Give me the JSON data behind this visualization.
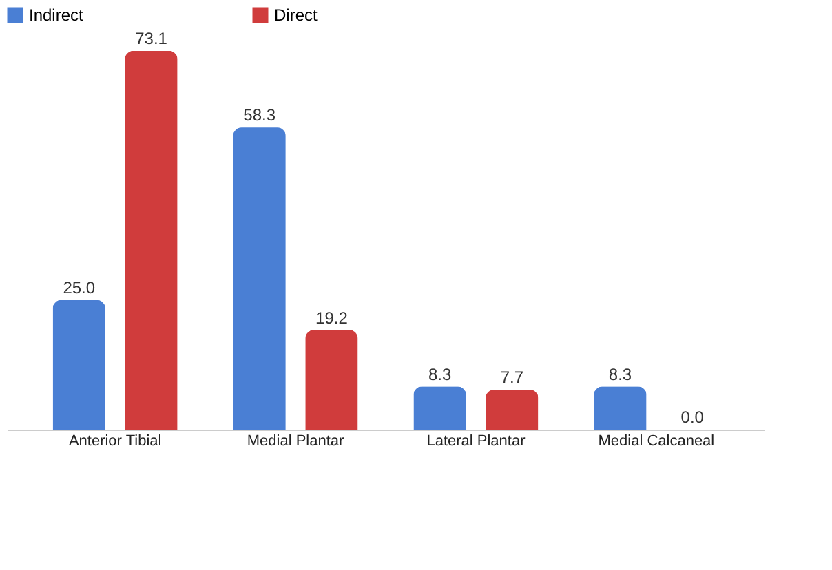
{
  "chart_data": {
    "type": "bar",
    "categories": [
      "Anterior Tibial",
      "Medial Plantar",
      "Lateral Plantar",
      "Medial Calcaneal"
    ],
    "series": [
      {
        "name": "Indirect",
        "color": "#4a7fd4",
        "values": [
          25.0,
          58.3,
          8.3,
          8.3
        ],
        "value_labels": [
          "25.0",
          "58.3",
          "8.3",
          "8.3"
        ]
      },
      {
        "name": "Direct",
        "color": "#d03c3c",
        "values": [
          73.1,
          19.2,
          7.7,
          0.0
        ],
        "value_labels": [
          "73.1",
          "19.2",
          "7.7",
          "0.0"
        ]
      }
    ],
    "legend": "top",
    "grid": false
  }
}
